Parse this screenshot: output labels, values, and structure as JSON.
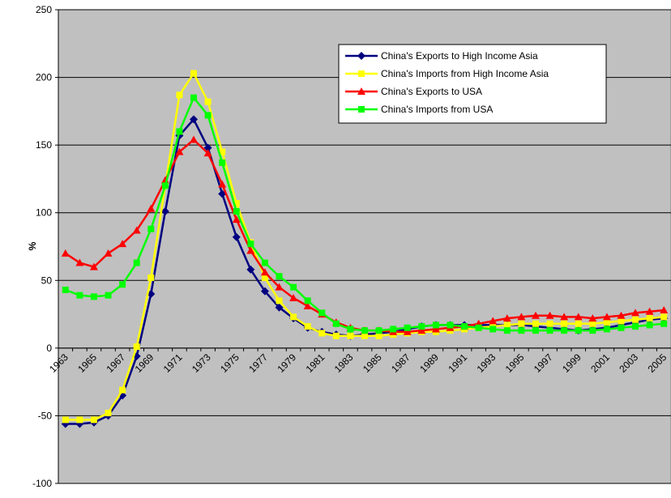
{
  "chart_data": {
    "type": "line",
    "y_label": "%",
    "categories": [
      "1963",
      null,
      "1965",
      null,
      "1967",
      null,
      "1969",
      null,
      "1971",
      null,
      "1973",
      null,
      "1975",
      null,
      "1977",
      null,
      "1979",
      null,
      "1981",
      null,
      "1983",
      null,
      "1985",
      null,
      "1987",
      null,
      "1989",
      null,
      "1991",
      null,
      "1993",
      null,
      "1995",
      null,
      "1997",
      null,
      "1999",
      null,
      "2001",
      null,
      "2003",
      null,
      "2005"
    ],
    "series": [
      {
        "name": "China's Exports to High Income Asia",
        "color": "#000080",
        "marker": "diamond",
        "values": [
          -56,
          -56,
          -55,
          -50,
          -35,
          -6,
          40,
          101,
          157,
          169,
          148,
          114,
          82,
          58,
          42,
          30,
          22,
          15,
          12,
          10,
          9,
          10,
          11,
          12,
          14,
          16,
          17,
          17,
          17,
          17,
          17,
          17,
          17,
          16,
          15,
          14,
          13,
          14,
          15,
          17,
          19,
          21,
          22
        ]
      },
      {
        "name": "China's Imports from High Income Asia",
        "color": "#ffff00",
        "marker": "square",
        "values": [
          -53,
          -53,
          -53,
          -48,
          -31,
          1,
          52,
          120,
          187,
          203,
          182,
          145,
          107,
          78,
          52,
          35,
          23,
          16,
          11,
          9,
          9,
          9,
          9,
          10,
          11,
          12,
          12,
          13,
          14,
          15,
          16,
          17,
          18,
          18,
          18,
          18,
          18,
          18,
          19,
          20,
          21,
          22,
          23
        ]
      },
      {
        "name": "China's Exports to USA",
        "color": "#ff0000",
        "marker": "triangle",
        "values": [
          70,
          63,
          60,
          70,
          77,
          87,
          103,
          124,
          145,
          154,
          144,
          121,
          95,
          72,
          56,
          45,
          37,
          31,
          25,
          19,
          15,
          13,
          13,
          12,
          12,
          13,
          14,
          15,
          16,
          18,
          20,
          22,
          23,
          24,
          24,
          23,
          23,
          22,
          23,
          24,
          26,
          27,
          28
        ]
      },
      {
        "name": "China's Imports from USA",
        "color": "#00ff00",
        "marker": "square",
        "values": [
          43,
          39,
          38,
          39,
          47,
          63,
          88,
          120,
          160,
          185,
          172,
          137,
          101,
          77,
          63,
          53,
          45,
          35,
          26,
          18,
          14,
          13,
          13,
          14,
          15,
          16,
          17,
          17,
          16,
          15,
          14,
          13,
          13,
          13,
          13,
          13,
          13,
          13,
          14,
          15,
          16,
          17,
          18
        ]
      }
    ],
    "ylim": [
      -100,
      250
    ],
    "yticks": [
      -100,
      -50,
      0,
      50,
      100,
      150,
      200,
      250
    ],
    "grid": true,
    "legend": "upper right"
  }
}
